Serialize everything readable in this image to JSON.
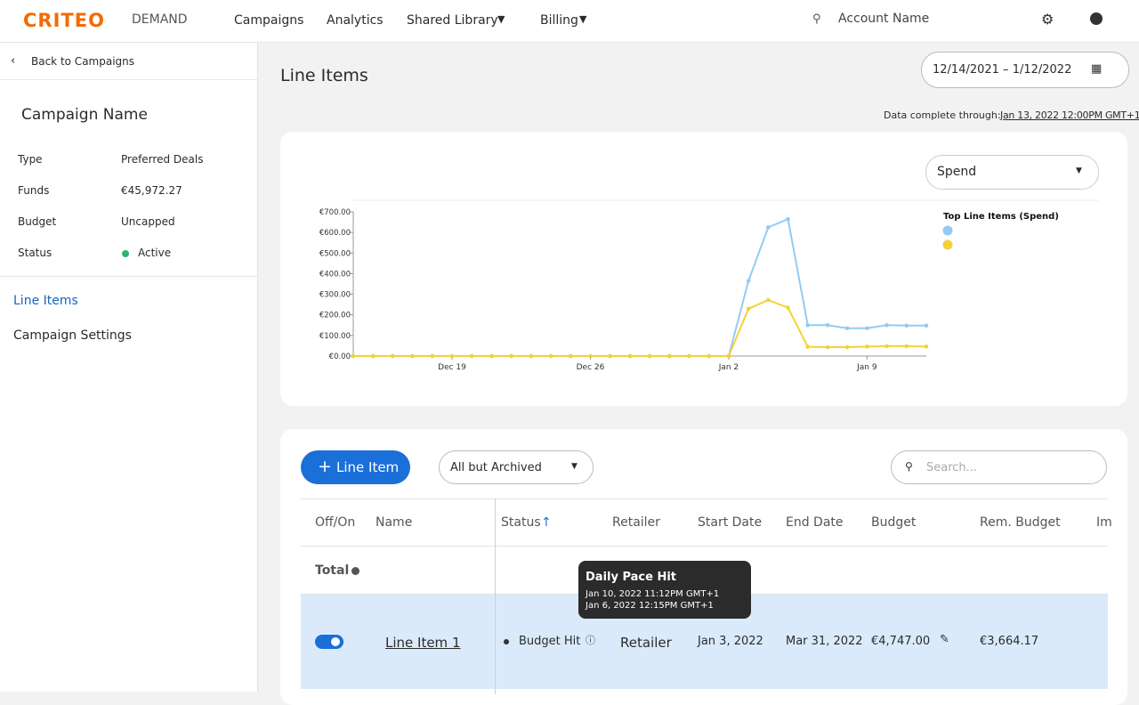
{
  "header": {
    "logo": "CRITEO",
    "product": "DEMAND",
    "nav": [
      "Campaigns",
      "Analytics",
      "Shared Library",
      "Billing"
    ],
    "account": "Account Name"
  },
  "sidebar": {
    "back": "Back to Campaigns",
    "campaign_name": "Campaign Name",
    "details": [
      [
        "Type",
        "Preferred Deals"
      ],
      [
        "Funds",
        "€45,972.27"
      ],
      [
        "Budget",
        "Uncapped"
      ],
      [
        "Status",
        "Active"
      ]
    ],
    "nav": [
      "Line Items",
      "Campaign Settings"
    ]
  },
  "main": {
    "title": "Line Items",
    "date_range": "12/14/2021 – 1/12/2022",
    "data_complete_label": "Data complete through:",
    "data_complete_value": "Jan 13, 2022 12:00PM GMT+1",
    "metric_select": "Spend"
  },
  "chart_data": {
    "type": "line",
    "legend_title": "Top Line Items (Spend)",
    "categories": [
      null,
      null,
      null,
      null,
      null,
      "Dec 19",
      null,
      null,
      null,
      null,
      null,
      null,
      "Dec 26",
      null,
      null,
      null,
      null,
      null,
      null,
      "Jan 2",
      null,
      null,
      null,
      null,
      null,
      null,
      "Jan 9",
      null,
      null,
      null
    ],
    "series": [
      {
        "color": "#92cbf5",
        "values": [
          0,
          0,
          0,
          0,
          0,
          0,
          0,
          0,
          0,
          0,
          0,
          0,
          0,
          0,
          0,
          0,
          0,
          0,
          0,
          0,
          365,
          625,
          665,
          150,
          150,
          135,
          135,
          150,
          148,
          148
        ]
      },
      {
        "color": "#f2d23a",
        "values": [
          0,
          0,
          0,
          0,
          0,
          0,
          0,
          0,
          0,
          0,
          0,
          0,
          0,
          0,
          0,
          0,
          0,
          0,
          0,
          0,
          230,
          272,
          235,
          45,
          43,
          43,
          46,
          48,
          48,
          46
        ]
      }
    ],
    "ylim": [
      0,
      700
    ],
    "yticks": [
      {
        "value": 0,
        "label": "€0.00"
      },
      {
        "value": 100,
        "label": "€100.00"
      },
      {
        "value": 200,
        "label": "€200.00"
      },
      {
        "value": 300,
        "label": "€300.00"
      },
      {
        "value": 400,
        "label": "€400.00"
      },
      {
        "value": 500,
        "label": "€500.00"
      },
      {
        "value": 600,
        "label": "€600.00"
      },
      {
        "value": 700,
        "label": "€700.00"
      }
    ]
  },
  "table": {
    "add_button": "Line Item",
    "filter": "All but Archived",
    "search_placeholder": "Search...",
    "columns": [
      "Off/On",
      "Name",
      "Status",
      "Retailer",
      "Start Date",
      "End Date",
      "Budget",
      "Rem. Budget",
      "Im"
    ],
    "total_label": "Total",
    "rows": [
      {
        "name": "Line Item 1",
        "status": "Budget Hit",
        "retailer": "Retailer",
        "start": "Jan 3, 2022",
        "end": "Mar 31, 2022",
        "budget": "€4,747.00",
        "rem_budget": "€3,664.17"
      }
    ],
    "tooltip": {
      "title": "Daily Pace Hit",
      "lines": [
        "Jan 10, 2022 11:12PM GMT+1",
        "Jan 6, 2022 12:15PM GMT+1"
      ]
    }
  }
}
